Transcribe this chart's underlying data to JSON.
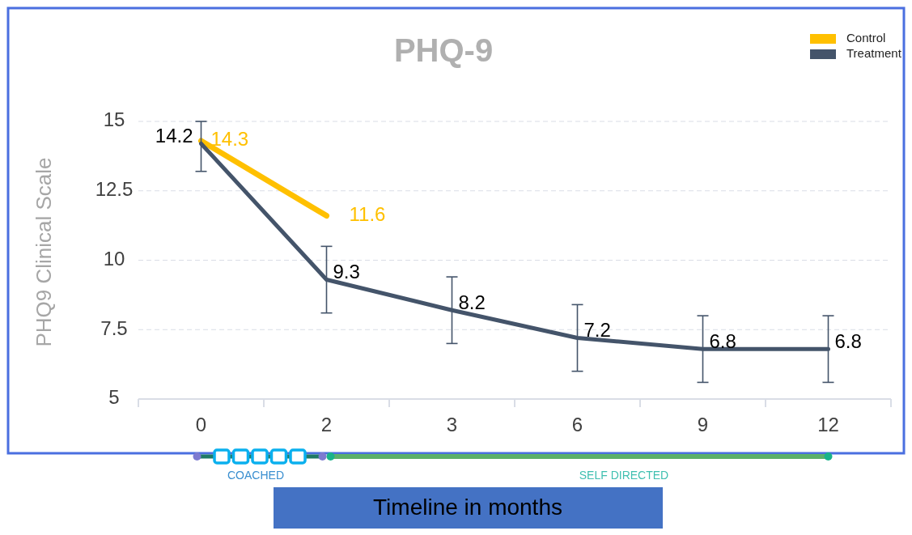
{
  "chart_data": {
    "type": "line",
    "title": "PHQ-9",
    "xlabel": "Timeline in months",
    "ylabel": "PHQ9 Clinical Scale",
    "categories": [
      "0",
      "2",
      "3",
      "6",
      "9",
      "12"
    ],
    "series": [
      {
        "name": "Control",
        "color": "#ffc000",
        "values": [
          14.3,
          11.6,
          null,
          null,
          null,
          null
        ]
      },
      {
        "name": "Treatment",
        "color": "#44546a",
        "values": [
          14.2,
          9.3,
          8.2,
          7.2,
          6.8,
          6.8
        ],
        "errors": [
          [
            13.2,
            15.0
          ],
          [
            8.1,
            10.5
          ],
          [
            7.0,
            9.4
          ],
          [
            6.0,
            8.4
          ],
          [
            5.6,
            8.0
          ],
          [
            5.6,
            8.0
          ]
        ]
      }
    ],
    "ylim": [
      5,
      15
    ],
    "yticks": [
      5,
      7.5,
      10,
      12.5,
      15
    ],
    "grid": "y",
    "legend": "top right",
    "data_labels": true,
    "marker": "none",
    "line_style": "solid",
    "annotations": [
      "COACHED",
      "SELF DIRECTED"
    ]
  }
}
